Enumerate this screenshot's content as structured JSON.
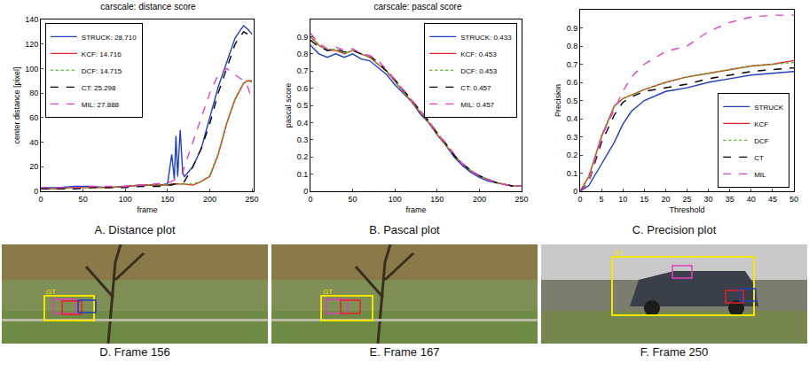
{
  "chart_data": [
    {
      "type": "line",
      "title": "carscale: distance score",
      "caption": "A. Distance plot",
      "x_label": "frame",
      "y_label": "center distance [pixel]",
      "x": [
        0,
        20,
        40,
        60,
        80,
        100,
        120,
        140,
        150,
        155,
        158,
        160,
        162,
        165,
        168,
        170,
        180,
        190,
        200,
        210,
        220,
        230,
        240,
        245,
        250
      ],
      "xlim": [
        0,
        252
      ],
      "xticks": [
        0,
        50,
        100,
        150,
        200,
        250
      ],
      "ylim": [
        0,
        140
      ],
      "yticks": [
        0,
        20,
        40,
        60,
        80,
        100,
        120,
        140
      ],
      "grid": false,
      "legend": "top left",
      "series": [
        {
          "name": "STRUCK: 28.710",
          "color": "#1f3fbf",
          "line_style": "solid",
          "values": [
            3,
            3,
            4,
            4,
            3,
            4,
            5,
            5,
            6,
            30,
            10,
            45,
            12,
            50,
            15,
            12,
            20,
            35,
            60,
            85,
            105,
            125,
            135,
            132,
            128
          ]
        },
        {
          "name": "KCF: 14.716",
          "color": "#e8202a",
          "line_style": "solid",
          "values": [
            2,
            2,
            3,
            3,
            3,
            4,
            5,
            5,
            5,
            6,
            6,
            6,
            6,
            6,
            6,
            6,
            5,
            8,
            12,
            30,
            55,
            75,
            88,
            90,
            90
          ]
        },
        {
          "name": "DCF: 14.715",
          "color": "#4cc21a",
          "line_style": "dotted",
          "values": [
            2,
            2,
            3,
            3,
            3,
            4,
            5,
            5,
            5,
            6,
            6,
            6,
            6,
            6,
            6,
            6,
            6,
            8,
            13,
            31,
            56,
            76,
            88,
            90,
            89
          ]
        },
        {
          "name": "CT: 25.298",
          "color": "#000000",
          "line_style": "dashed",
          "values": [
            2,
            2,
            2,
            3,
            3,
            3,
            4,
            4,
            5,
            5,
            6,
            6,
            6,
            7,
            7,
            8,
            20,
            35,
            55,
            80,
            100,
            120,
            130,
            128,
            126
          ]
        },
        {
          "name": "MIL: 27.888",
          "color": "#e040c0",
          "line_style": "dashed",
          "values": [
            3,
            3,
            3,
            4,
            4,
            4,
            5,
            6,
            7,
            8,
            9,
            10,
            11,
            13,
            15,
            20,
            40,
            60,
            80,
            95,
            100,
            95,
            90,
            85,
            75
          ]
        }
      ]
    },
    {
      "type": "line",
      "title": "carscale: pascal score",
      "caption": "B. Pascal plot",
      "x_label": "frame",
      "y_label": "pascal score",
      "x": [
        0,
        10,
        20,
        30,
        40,
        50,
        60,
        70,
        80,
        90,
        100,
        110,
        120,
        130,
        140,
        150,
        160,
        170,
        180,
        190,
        200,
        210,
        220,
        230,
        240,
        250
      ],
      "xlim": [
        0,
        250
      ],
      "xticks": [
        0,
        50,
        100,
        150,
        200,
        250
      ],
      "ylim": [
        0,
        1
      ],
      "yticks": [
        0,
        0.1,
        0.2,
        0.3,
        0.4,
        0.5,
        0.6,
        0.7,
        0.8,
        0.9
      ],
      "grid": false,
      "legend": "top right",
      "series": [
        {
          "name": "STRUCK: 0.433",
          "color": "#1f3fbf",
          "line_style": "solid",
          "values": [
            0.85,
            0.8,
            0.78,
            0.8,
            0.78,
            0.8,
            0.77,
            0.76,
            0.72,
            0.68,
            0.62,
            0.57,
            0.52,
            0.45,
            0.4,
            0.33,
            0.27,
            0.2,
            0.15,
            0.11,
            0.08,
            0.06,
            0.05,
            0.04,
            0.03,
            0.03
          ]
        },
        {
          "name": "KCF: 0.453",
          "color": "#e8202a",
          "line_style": "solid",
          "values": [
            0.9,
            0.85,
            0.82,
            0.82,
            0.8,
            0.82,
            0.8,
            0.78,
            0.74,
            0.7,
            0.64,
            0.58,
            0.52,
            0.46,
            0.4,
            0.33,
            0.27,
            0.21,
            0.16,
            0.12,
            0.09,
            0.07,
            0.05,
            0.04,
            0.03,
            0.03
          ]
        },
        {
          "name": "DCF: 0.453",
          "color": "#4cc21a",
          "line_style": "dotted",
          "values": [
            0.9,
            0.85,
            0.82,
            0.83,
            0.8,
            0.82,
            0.8,
            0.78,
            0.74,
            0.7,
            0.64,
            0.58,
            0.52,
            0.46,
            0.4,
            0.33,
            0.27,
            0.21,
            0.16,
            0.12,
            0.09,
            0.07,
            0.05,
            0.04,
            0.03,
            0.03
          ]
        },
        {
          "name": "CT: 0.457",
          "color": "#000000",
          "line_style": "dashed",
          "values": [
            0.88,
            0.84,
            0.82,
            0.83,
            0.81,
            0.82,
            0.8,
            0.79,
            0.75,
            0.7,
            0.65,
            0.59,
            0.53,
            0.47,
            0.41,
            0.34,
            0.28,
            0.21,
            0.16,
            0.12,
            0.09,
            0.07,
            0.05,
            0.04,
            0.03,
            0.03
          ]
        },
        {
          "name": "MIL: 0.457",
          "color": "#e040c0",
          "line_style": "dashed",
          "values": [
            0.92,
            0.86,
            0.83,
            0.84,
            0.82,
            0.83,
            0.8,
            0.79,
            0.76,
            0.71,
            0.65,
            0.59,
            0.53,
            0.47,
            0.41,
            0.34,
            0.28,
            0.22,
            0.16,
            0.12,
            0.09,
            0.07,
            0.05,
            0.04,
            0.03,
            0.03
          ]
        }
      ]
    },
    {
      "type": "line",
      "caption": "C. Precision plot",
      "x_label": "Threshold",
      "y_label": "Precision",
      "x": [
        0,
        2,
        5,
        8,
        10,
        12,
        15,
        20,
        25,
        30,
        35,
        40,
        45,
        50
      ],
      "xlim": [
        0,
        50
      ],
      "xticks": [
        0,
        5,
        10,
        15,
        20,
        25,
        30,
        35,
        40,
        45,
        50
      ],
      "ylim": [
        0,
        1
      ],
      "yticks": [
        0,
        0.1,
        0.2,
        0.3,
        0.4,
        0.5,
        0.6,
        0.7,
        0.8,
        0.9
      ],
      "grid": false,
      "legend": "bottom right",
      "series": [
        {
          "name": "STRUCK",
          "color": "#1f3fbf",
          "line_style": "solid",
          "values": [
            0,
            0.03,
            0.15,
            0.27,
            0.37,
            0.44,
            0.5,
            0.55,
            0.57,
            0.6,
            0.62,
            0.64,
            0.65,
            0.66
          ]
        },
        {
          "name": "KCF",
          "color": "#e8202a",
          "line_style": "solid",
          "values": [
            0,
            0.08,
            0.3,
            0.47,
            0.51,
            0.53,
            0.56,
            0.6,
            0.63,
            0.65,
            0.67,
            0.69,
            0.7,
            0.72
          ]
        },
        {
          "name": "DCF",
          "color": "#4cc21a",
          "line_style": "dotted",
          "values": [
            0,
            0.08,
            0.31,
            0.47,
            0.51,
            0.53,
            0.56,
            0.6,
            0.63,
            0.65,
            0.67,
            0.69,
            0.7,
            0.71
          ]
        },
        {
          "name": "CT",
          "color": "#000000",
          "line_style": "dashed",
          "values": [
            0,
            0.05,
            0.27,
            0.42,
            0.49,
            0.52,
            0.55,
            0.57,
            0.59,
            0.62,
            0.64,
            0.66,
            0.67,
            0.68
          ]
        },
        {
          "name": "MIL",
          "color": "#e040c0",
          "line_style": "dashed",
          "values": [
            0,
            0.05,
            0.3,
            0.45,
            0.55,
            0.63,
            0.7,
            0.77,
            0.8,
            0.88,
            0.93,
            0.96,
            0.97,
            0.97
          ]
        }
      ]
    }
  ],
  "frames": [
    {
      "caption": "D. Frame 156",
      "label": "GT"
    },
    {
      "caption": "E. Frame 167",
      "label": "GT"
    },
    {
      "caption": "F. Frame 250",
      "label": "GT"
    }
  ]
}
